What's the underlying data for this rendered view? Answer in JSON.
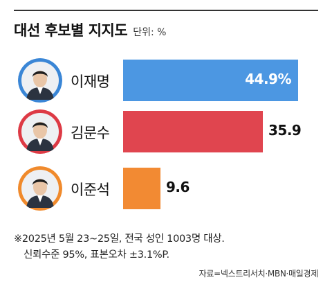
{
  "chart_data": {
    "type": "bar",
    "orientation": "horizontal",
    "title": "대선 후보별 지지도",
    "unit_label": "단위: %",
    "categories": [
      "이재명",
      "김문수",
      "이준석"
    ],
    "values": [
      44.9,
      35.9,
      9.6
    ],
    "value_labels": [
      "44.9%",
      "35.9",
      "9.6"
    ],
    "colors": [
      "#4c97e2",
      "#e0454f",
      "#f28a33"
    ],
    "avatar_colors": [
      "#3a86d6",
      "#dd3a45",
      "#f08a2c"
    ],
    "xlim": [
      0,
      50
    ]
  },
  "notes": {
    "line1": "※2025년 5월 23~25일, 전국 성인 1003명 대상.",
    "line2": "신뢰수준 95%, 표본오차 ±3.1%P."
  },
  "source": "자료=넥스트리서치·MBN·매일경제"
}
